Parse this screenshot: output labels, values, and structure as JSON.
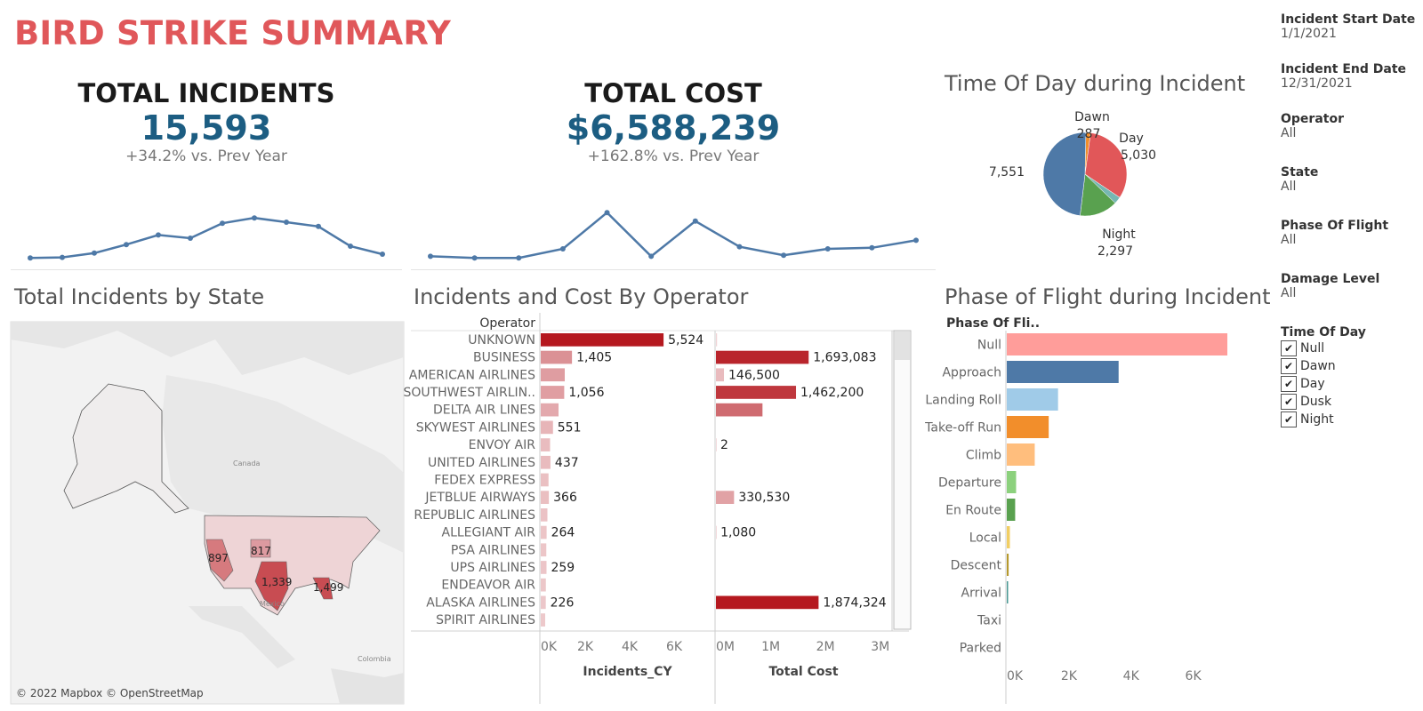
{
  "header": {
    "title": "BIRD STRIKE SUMMARY"
  },
  "kpis": {
    "incidents": {
      "label": "TOTAL INCIDENTS",
      "value": "15,593",
      "delta": "+34.2% vs. Prev Year"
    },
    "cost": {
      "label": "TOTAL COST",
      "value": "$6,588,239",
      "delta": "+162.8% vs. Prev Year"
    }
  },
  "sections": {
    "time_of_day": "Time Of Day during Incident",
    "state": "Total Incidents by State",
    "operator": "Incidents and Cost By Operator",
    "phase": "Phase of Flight during Incident"
  },
  "map": {
    "attribution": "© 2022 Mapbox © OpenStreetMap",
    "canada": "Canada",
    "mexico": "Mexico",
    "colombia": "Colombia"
  },
  "filters": {
    "items": [
      {
        "label": "Incident Start Date",
        "value": "1/1/2021"
      },
      {
        "label": "Incident End Date",
        "value": "12/31/2021"
      },
      {
        "label": "Operator",
        "value": "All"
      },
      {
        "label": "State",
        "value": "All"
      },
      {
        "label": "Phase Of Flight",
        "value": "All"
      },
      {
        "label": "Damage Level",
        "value": "All"
      }
    ],
    "time_of_day": {
      "label": "Time Of Day",
      "options": [
        {
          "label": "Null",
          "checked": true
        },
        {
          "label": "Dawn",
          "checked": true
        },
        {
          "label": "Day",
          "checked": true
        },
        {
          "label": "Dusk",
          "checked": true
        },
        {
          "label": "Night",
          "checked": true
        }
      ]
    }
  },
  "colors": {
    "title": "#e0575a",
    "kpi_value": "#1c5d82",
    "line": "#4e79a7",
    "bar_dark": "#b5181f",
    "bar_light": "#ecc2c6"
  },
  "chart_data": [
    {
      "id": "incidents-trend",
      "type": "line",
      "values": [
        3,
        4,
        12,
        28,
        46,
        40,
        68,
        78,
        70,
        62,
        25,
        10
      ],
      "ylim": [
        0,
        100
      ]
    },
    {
      "id": "cost-trend",
      "type": "line",
      "values": [
        6,
        3,
        3,
        20,
        88,
        6,
        72,
        24,
        8,
        20,
        22,
        36
      ],
      "ylim": [
        0,
        100
      ]
    },
    {
      "id": "time-of-day",
      "type": "pie",
      "title": "Time Of Day during Incident",
      "slices": [
        {
          "name": "Dawn",
          "value": 287,
          "color": "#f28e2b",
          "label": "287"
        },
        {
          "name": "Day",
          "value": 5030,
          "color": "#e15759",
          "label": "5,030"
        },
        {
          "name": "Dusk",
          "value": 428,
          "color": "#76b7b2",
          "label": ""
        },
        {
          "name": "Night",
          "value": 2297,
          "color": "#59a14f",
          "label": "2,297"
        },
        {
          "name": "Null",
          "value": 7551,
          "color": "#4e79a7",
          "label": "7,551"
        }
      ]
    },
    {
      "id": "incidents-by-operator",
      "type": "bar",
      "orientation": "horizontal",
      "ylabel": "Operator",
      "xlabel": "Incidents_CY",
      "categories": [
        "UNKNOWN",
        "BUSINESS",
        "AMERICAN AIRLINES",
        "SOUTHWEST AIRLIN..",
        "DELTA AIR LINES",
        "SKYWEST AIRLINES",
        "ENVOY AIR",
        "UNITED AIRLINES",
        "FEDEX EXPRESS",
        "JETBLUE AIRWAYS",
        "REPUBLIC AIRLINES",
        "ALLEGIANT AIR",
        "PSA AIRLINES",
        "UPS AIRLINES",
        "ENDEAVOR AIR",
        "ALASKA AIRLINES",
        "SPIRIT AIRLINES"
      ],
      "values": [
        5524,
        1405,
        1080,
        1056,
        800,
        551,
        420,
        437,
        350,
        366,
        300,
        264,
        250,
        259,
        230,
        226,
        200
      ],
      "labels": [
        "5,524",
        "1,405",
        "",
        "1,056",
        "",
        "551",
        "",
        "437",
        "",
        "366",
        "",
        "264",
        "",
        "259",
        "",
        "226",
        ""
      ],
      "xlim": [
        0,
        7800
      ],
      "ticks": [
        {
          "v": 0,
          "t": "0K"
        },
        {
          "v": 2000,
          "t": "2K"
        },
        {
          "v": 4000,
          "t": "4K"
        },
        {
          "v": 6000,
          "t": "6K"
        }
      ]
    },
    {
      "id": "cost-by-operator",
      "type": "bar",
      "orientation": "horizontal",
      "xlabel": "Total Cost",
      "categories": [
        "UNKNOWN",
        "BUSINESS",
        "AMERICAN AIRLINES",
        "SOUTHWEST AIRLIN..",
        "DELTA AIR LINES",
        "SKYWEST AIRLINES",
        "ENVOY AIR",
        "UNITED AIRLINES",
        "FEDEX EXPRESS",
        "JETBLUE AIRWAYS",
        "REPUBLIC AIRLINES",
        "ALLEGIANT AIR",
        "PSA AIRLINES",
        "UPS AIRLINES",
        "ENDEAVOR AIR",
        "ALASKA AIRLINES",
        "SPIRIT AIRLINES"
      ],
      "values": [
        20000,
        1693083,
        146500,
        1462200,
        850000,
        0,
        2,
        0,
        0,
        330530,
        0,
        1080,
        0,
        0,
        0,
        1874324,
        0
      ],
      "labels": [
        "",
        "1,693,083",
        "146,500",
        "1,462,200",
        "",
        "",
        "2",
        "",
        "",
        "330,530",
        "",
        "1,080",
        "",
        "",
        "",
        "1,874,324",
        ""
      ],
      "xlim": [
        0,
        3200000
      ],
      "ticks": [
        {
          "v": 0,
          "t": "0M"
        },
        {
          "v": 1000000,
          "t": "1M"
        },
        {
          "v": 2000000,
          "t": "2M"
        },
        {
          "v": 3000000,
          "t": "3M"
        }
      ]
    },
    {
      "id": "phase-of-flight",
      "type": "bar",
      "orientation": "horizontal",
      "title": "Phase of Flight during Incident",
      "ylabel": "Phase Of Fli..",
      "categories": [
        "Null",
        "Approach",
        "Landing Roll",
        "Take-off Run",
        "Climb",
        "Departure",
        "En Route",
        "Local",
        "Descent",
        "Arrival",
        "Taxi",
        "Parked"
      ],
      "values": [
        7100,
        3600,
        1650,
        1350,
        900,
        300,
        270,
        100,
        60,
        40,
        0,
        0
      ],
      "colors": [
        "#ff9d9a",
        "#4e79a7",
        "#a0cbe8",
        "#f28e2b",
        "#ffbe7d",
        "#8cd17d",
        "#59a14f",
        "#f1ce63",
        "#b6992d",
        "#499894",
        "#86bcb6",
        "#e15759"
      ],
      "xlim": [
        0,
        7300
      ],
      "ticks": [
        {
          "v": 0,
          "t": "0K"
        },
        {
          "v": 2000,
          "t": "2K"
        },
        {
          "v": 4000,
          "t": "4K"
        },
        {
          "v": 6000,
          "t": "6K"
        }
      ]
    }
  ]
}
